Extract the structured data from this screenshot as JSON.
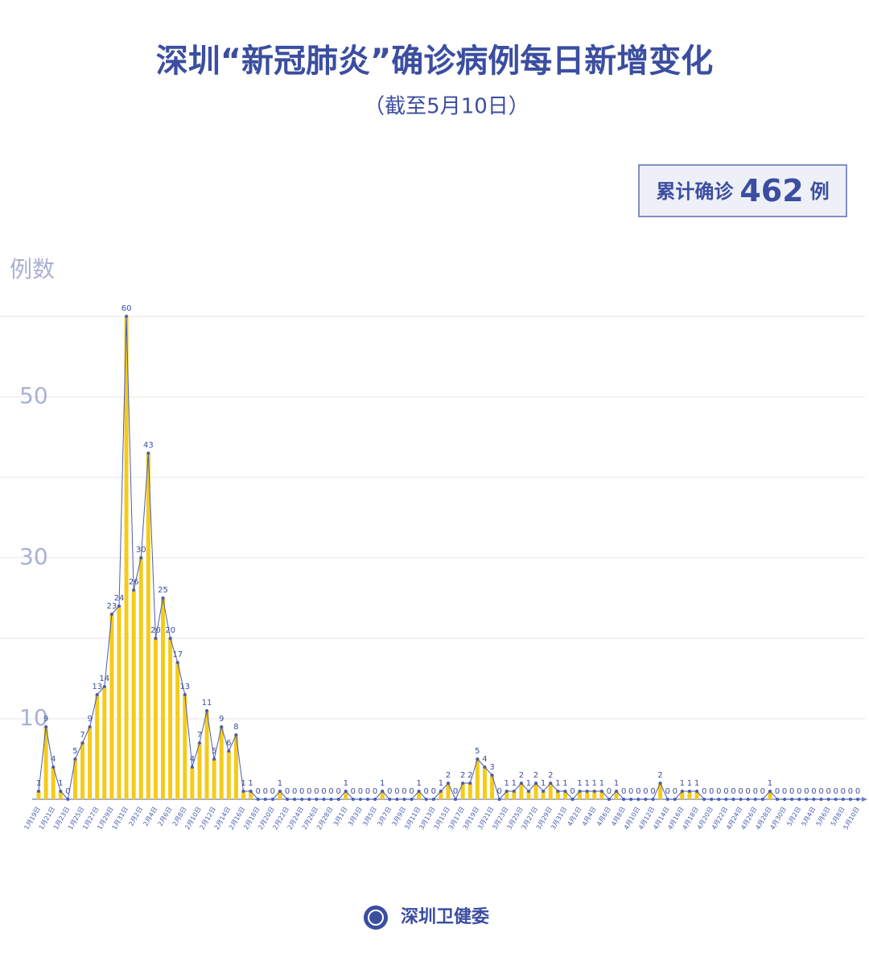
{
  "chart_data": {
    "type": "line",
    "title": "深圳“新冠肺炎”确诊病例每日新增变化",
    "subtitle": "（截至5月10日）",
    "total_prefix": "累计确诊",
    "total": 462,
    "total_suffix": "例",
    "y_label": "例数",
    "source": "深圳卫健委",
    "categories": [
      "1月19日",
      null,
      "1月21日",
      null,
      "1月23日",
      null,
      "1月25日",
      null,
      "1月27日",
      null,
      "1月29日",
      null,
      "1月31日",
      null,
      "2月2日",
      null,
      "2月4日",
      null,
      "2月6日",
      null,
      "2月8日",
      null,
      "2月10日",
      null,
      "2月12日",
      null,
      "2月14日",
      null,
      "2月16日",
      null,
      "2月18日",
      null,
      "2月20日",
      null,
      "2月22日",
      null,
      "2月24日",
      null,
      "2月26日",
      null,
      "2月28日",
      null,
      "3月1日",
      null,
      "3月3日",
      null,
      "3月5日",
      null,
      "3月7日",
      null,
      "3月9日",
      null,
      "3月11日",
      null,
      "3月13日",
      null,
      "3月15日",
      null,
      "3月17日",
      null,
      "3月19日",
      null,
      "3月21日",
      null,
      "3月23日",
      null,
      "3月25日",
      null,
      "3月27日",
      null,
      "3月29日",
      null,
      "3月31日",
      null,
      "4月2日",
      null,
      "4月4日",
      null,
      "4月6日",
      null,
      "4月8日",
      null,
      "4月10日",
      null,
      "4月12日",
      null,
      "4月14日",
      null,
      "4月16日",
      null,
      "4月18日",
      null,
      "4月20日",
      null,
      "4月22日",
      null,
      "4月24日",
      null,
      "4月26日",
      null,
      "4月28日",
      null,
      "4月30日",
      null,
      "5月2日",
      null,
      "5月4日",
      null,
      "5月6日",
      null,
      "5月8日",
      null,
      "5月10日"
    ],
    "values": [
      1,
      9,
      4,
      1,
      0,
      5,
      7,
      9,
      13,
      14,
      23,
      24,
      60,
      26,
      30,
      43,
      20,
      25,
      20,
      17,
      13,
      4,
      7,
      11,
      5,
      9,
      6,
      8,
      1,
      1,
      0,
      0,
      0,
      1,
      0,
      0,
      0,
      0,
      0,
      0,
      0,
      0,
      1,
      0,
      0,
      0,
      0,
      1,
      0,
      0,
      0,
      0,
      1,
      0,
      0,
      1,
      2,
      0,
      2,
      2,
      5,
      4,
      3,
      0,
      1,
      1,
      2,
      1,
      2,
      1,
      2,
      1,
      1,
      0,
      1,
      1,
      1,
      1,
      0,
      1,
      0,
      0,
      0,
      0,
      0,
      2,
      0,
      0,
      1,
      1,
      1,
      0,
      0,
      0,
      0,
      0,
      0,
      0,
      0,
      0,
      1,
      0,
      0,
      0,
      0,
      0,
      0,
      0,
      0,
      0,
      0,
      0,
      0
    ],
    "bar_color": "#f5cb1a",
    "line_color": "#4a5db0",
    "ylim": [
      0,
      60
    ],
    "yticks": [
      10,
      30,
      50
    ],
    "gridlines": [
      10,
      20,
      30,
      40,
      50,
      60
    ]
  }
}
